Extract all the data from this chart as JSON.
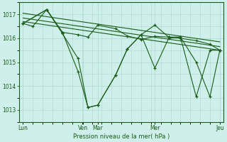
{
  "background_color": "#cff0ea",
  "grid_color": "#aad8d0",
  "line_color": "#1a5c1a",
  "marker_color": "#1a5c1a",
  "xlabel": "Pression niveau de la mer( hPa )",
  "ylim": [
    1012.5,
    1017.5
  ],
  "yticks": [
    1013,
    1014,
    1015,
    1016,
    1017
  ],
  "trend1_x": [
    0,
    1
  ],
  "trend1_y": [
    1017.05,
    1015.85
  ],
  "trend2_x": [
    0,
    1
  ],
  "trend2_y": [
    1016.85,
    1015.65
  ],
  "trend3_x": [
    0,
    1
  ],
  "trend3_y": [
    1016.7,
    1015.5
  ],
  "s1_x": [
    0.0,
    0.05,
    0.12,
    0.2,
    0.28,
    0.33,
    0.38,
    0.47,
    0.53,
    0.6,
    0.67,
    0.74,
    0.8,
    0.88,
    0.95,
    1.0
  ],
  "s1_y": [
    1016.62,
    1016.5,
    1017.2,
    1016.25,
    1016.15,
    1016.05,
    1016.55,
    1016.4,
    1016.1,
    1015.95,
    1016.08,
    1016.05,
    1016.0,
    1015.9,
    1015.75,
    1015.5
  ],
  "s2_x": [
    0.0,
    0.12,
    0.2,
    0.28,
    0.33,
    0.38,
    0.47,
    0.53,
    0.6,
    0.67,
    0.74,
    0.8,
    0.88,
    0.95,
    1.0
  ],
  "s2_y": [
    1016.62,
    1017.2,
    1016.2,
    1015.15,
    1013.1,
    1013.2,
    1014.45,
    1015.55,
    1016.15,
    1014.75,
    1016.0,
    1016.05,
    1015.0,
    1013.55,
    1015.5
  ],
  "s3_x": [
    0.0,
    0.12,
    0.2,
    0.28,
    0.33,
    0.38,
    0.47,
    0.53,
    0.6,
    0.67,
    0.74,
    0.8,
    0.88,
    0.95,
    1.0
  ],
  "s3_y": [
    1016.62,
    1017.2,
    1016.25,
    1014.6,
    1013.1,
    1013.2,
    1014.45,
    1015.55,
    1016.15,
    1016.55,
    1016.05,
    1016.05,
    1013.55,
    1015.5,
    1015.5
  ],
  "xlim": [
    -0.02,
    1.02
  ],
  "xtick_pos": [
    0.0,
    0.305,
    0.38,
    0.67,
    1.0
  ],
  "xtick_labels": [
    "Lun",
    "Ven",
    "Mar",
    "Mer",
    "Jeu"
  ]
}
